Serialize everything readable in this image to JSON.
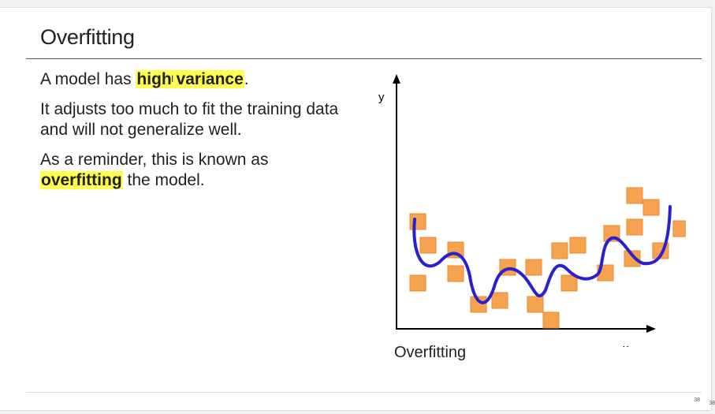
{
  "slide": {
    "title": "Overfitting",
    "paragraphs": {
      "p1_prefix": "A model has ",
      "p1_highlight": "high variance",
      "p1_suffix": ".",
      "p2": "It adjusts too much to fit the training data and will not generalize well.",
      "p3_prefix": "As a reminder, this is known as ",
      "p3_highlight": "overfitting",
      "p3_suffix": " the model."
    },
    "highlight_color": "#ffff52",
    "page_number": "38",
    "page_number_secondary": "38"
  },
  "diagram": {
    "x_axis_label": "x",
    "y_axis_label": "y",
    "caption": "Overfitting",
    "point_color": "#f6a24e",
    "curve_color": "#2b1fd1",
    "axis_color": "#000000"
  }
}
